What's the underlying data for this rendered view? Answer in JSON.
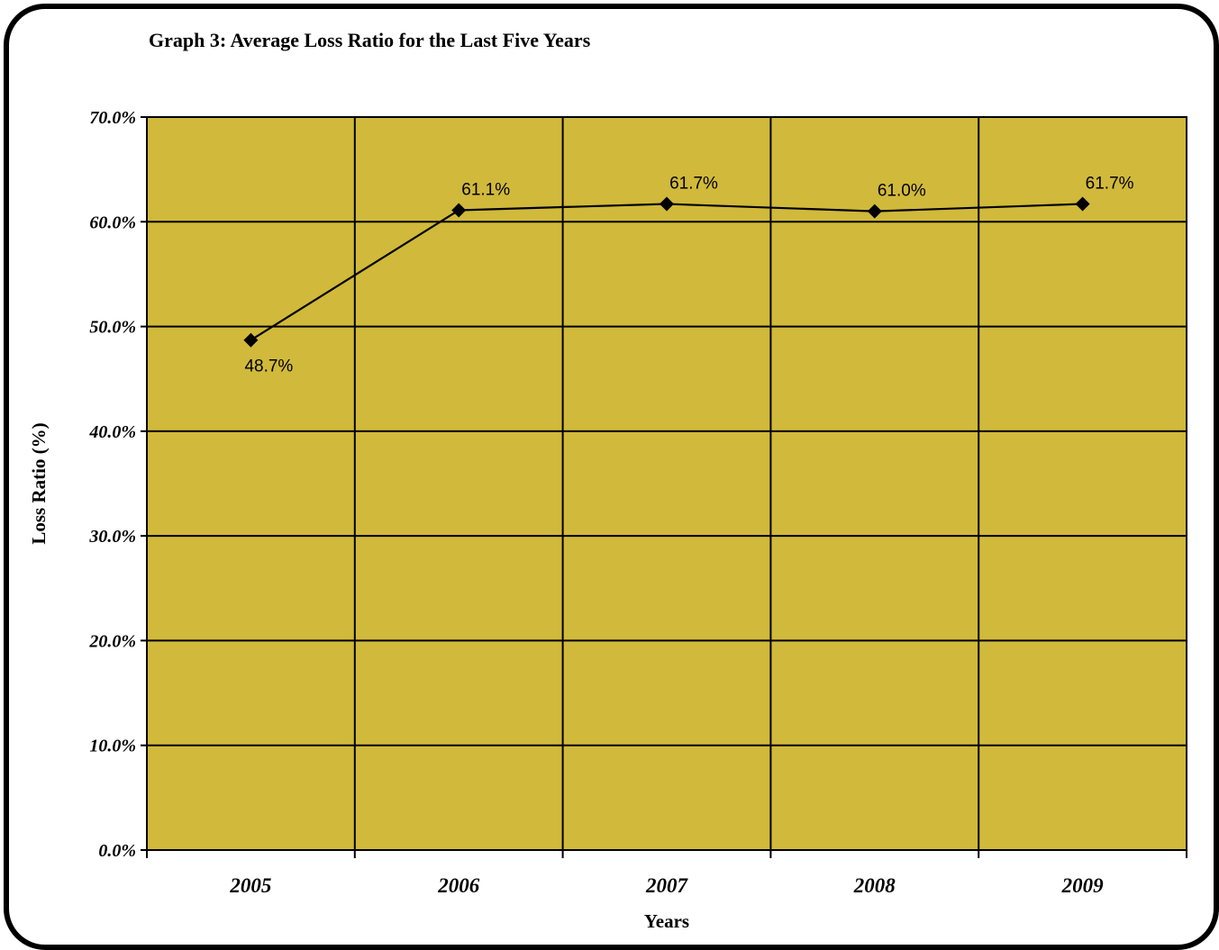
{
  "chart_data": {
    "type": "line",
    "title": "Graph 3: Average Loss Ratio for the Last Five Years",
    "xlabel": "Years",
    "ylabel": "Loss Ratio (%)",
    "categories": [
      "2005",
      "2006",
      "2007",
      "2008",
      "2009"
    ],
    "values": [
      48.7,
      61.1,
      61.7,
      61.0,
      61.7
    ],
    "data_labels": [
      "48.7%",
      "61.1%",
      "61.7%",
      "61.0%",
      "61.7%"
    ],
    "ylim": [
      0,
      70
    ],
    "yticks": [
      "0.0%",
      "10.0%",
      "20.0%",
      "30.0%",
      "40.0%",
      "50.0%",
      "60.0%",
      "70.0%"
    ],
    "grid": true,
    "plot_background": "#d1b93b",
    "line_color": "#000000",
    "marker": "diamond"
  }
}
